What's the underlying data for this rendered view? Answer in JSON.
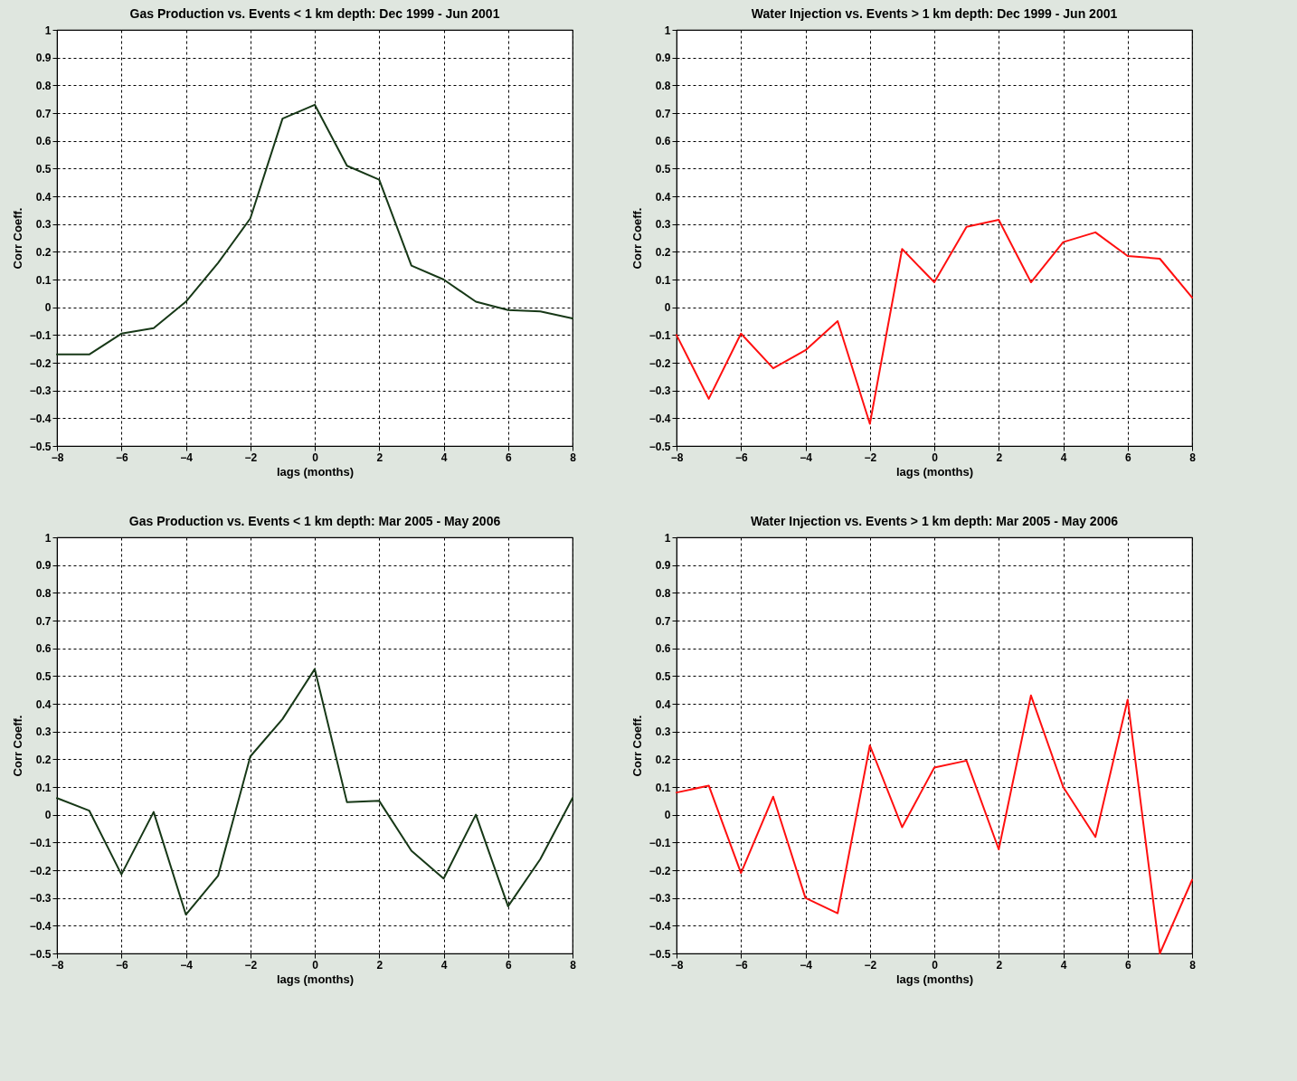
{
  "chart_data": [
    {
      "type": "line",
      "title": "Gas Production vs. Events < 1 km depth: Dec 1999 - Jun 2001",
      "xlabel": "lags (months)",
      "ylabel": "Corr Coeff.",
      "x": [
        -8,
        -7,
        -6,
        -5,
        -4,
        -3,
        -2,
        -1,
        0,
        1,
        2,
        3,
        4,
        5,
        6,
        7,
        8
      ],
      "series": [
        {
          "color": "#173817",
          "values": [
            -0.17,
            -0.17,
            -0.095,
            -0.075,
            0.02,
            0.16,
            0.32,
            0.68,
            0.73,
            0.51,
            0.46,
            0.15,
            0.1,
            0.02,
            -0.01,
            -0.015,
            -0.04
          ]
        }
      ],
      "xlim": [
        -8,
        8
      ],
      "ylim": [
        -0.5,
        1
      ],
      "xticks": [
        -8,
        -6,
        -4,
        -2,
        0,
        2,
        4,
        6,
        8
      ],
      "yticks": [
        -0.5,
        -0.4,
        -0.3,
        -0.2,
        -0.1,
        0,
        0.1,
        0.2,
        0.3,
        0.4,
        0.5,
        0.6,
        0.7,
        0.8,
        0.9,
        1
      ],
      "grid": true,
      "line_style": "solid"
    },
    {
      "type": "line",
      "title": "Water Injection vs. Events > 1 km depth: Dec 1999 - Jun 2001",
      "xlabel": "lags (months)",
      "ylabel": "Corr Coeff.",
      "x": [
        -8,
        -7,
        -6,
        -5,
        -4,
        -3,
        -2,
        -1,
        0,
        1,
        2,
        3,
        4,
        5,
        6,
        7,
        8
      ],
      "series": [
        {
          "color": "#ff1010",
          "values": [
            -0.1,
            -0.33,
            -0.095,
            -0.22,
            -0.155,
            -0.05,
            -0.42,
            0.21,
            0.09,
            0.29,
            0.315,
            0.09,
            0.235,
            0.27,
            0.185,
            0.175,
            0.035
          ]
        }
      ],
      "xlim": [
        -8,
        8
      ],
      "ylim": [
        -0.5,
        1
      ],
      "xticks": [
        -8,
        -6,
        -4,
        -2,
        0,
        2,
        4,
        6,
        8
      ],
      "yticks": [
        -0.5,
        -0.4,
        -0.3,
        -0.2,
        -0.1,
        0,
        0.1,
        0.2,
        0.3,
        0.4,
        0.5,
        0.6,
        0.7,
        0.8,
        0.9,
        1
      ],
      "grid": true,
      "line_style": "solid"
    },
    {
      "type": "line",
      "title": "Gas Production vs. Events < 1 km depth: Mar 2005 - May 2006",
      "xlabel": "lags (months)",
      "ylabel": "Corr Coeff.",
      "x": [
        -8,
        -7,
        -6,
        -5,
        -4,
        -3,
        -2,
        -1,
        0,
        1,
        2,
        3,
        4,
        5,
        6,
        7,
        8
      ],
      "series": [
        {
          "color": "#173817",
          "values": [
            0.06,
            0.015,
            -0.215,
            0.01,
            -0.36,
            -0.22,
            0.21,
            0.345,
            0.525,
            0.045,
            0.05,
            -0.13,
            -0.23,
            0,
            -0.33,
            -0.16,
            0.06
          ]
        }
      ],
      "xlim": [
        -8,
        8
      ],
      "ylim": [
        -0.5,
        1
      ],
      "xticks": [
        -8,
        -6,
        -4,
        -2,
        0,
        2,
        4,
        6,
        8
      ],
      "yticks": [
        -0.5,
        -0.4,
        -0.3,
        -0.2,
        -0.1,
        0,
        0.1,
        0.2,
        0.3,
        0.4,
        0.5,
        0.6,
        0.7,
        0.8,
        0.9,
        1
      ],
      "grid": true,
      "line_style": "solid"
    },
    {
      "type": "line",
      "title": "Water Injection vs. Events > 1 km depth: Mar 2005 - May 2006",
      "xlabel": "lags (months)",
      "ylabel": "Corr Coeff.",
      "x": [
        -8,
        -7,
        -6,
        -5,
        -4,
        -3,
        -2,
        -1,
        0,
        1,
        2,
        3,
        4,
        5,
        6,
        7,
        8
      ],
      "series": [
        {
          "color": "#ff1010",
          "values": [
            0.08,
            0.105,
            -0.21,
            0.065,
            -0.3,
            -0.355,
            0.25,
            -0.045,
            0.17,
            0.195,
            -0.125,
            0.43,
            0.1,
            -0.08,
            0.415,
            -0.5,
            -0.235
          ]
        }
      ],
      "xlim": [
        -8,
        8
      ],
      "ylim": [
        -0.5,
        1
      ],
      "xticks": [
        -8,
        -6,
        -4,
        -2,
        0,
        2,
        4,
        6,
        8
      ],
      "yticks": [
        -0.5,
        -0.4,
        -0.3,
        -0.2,
        -0.1,
        0,
        0.1,
        0.2,
        0.3,
        0.4,
        0.5,
        0.6,
        0.7,
        0.8,
        0.9,
        1
      ],
      "grid": true,
      "line_style": "solid"
    }
  ]
}
